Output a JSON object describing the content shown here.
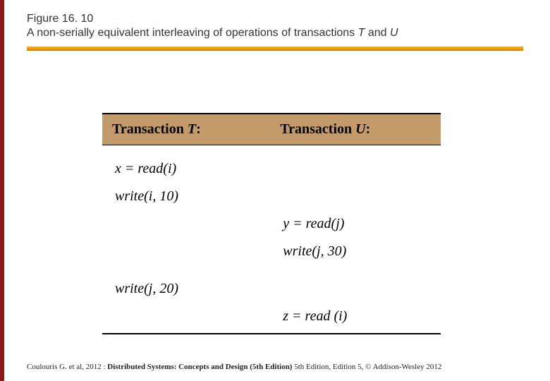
{
  "left_stripe_color": "#8b1a1a",
  "header": {
    "figure_number": "Figure 16. 10",
    "title_prefix": "A non-serially equivalent interleaving of operations of transactions ",
    "title_t": "T",
    "title_and": " and ",
    "title_u": "U"
  },
  "orange_bar": {
    "fill": "#f4a918",
    "shadow": "#e08a00"
  },
  "table": {
    "header_bg": "#c39b6b",
    "col_t_label_prefix": "Transaction ",
    "col_t_label_var": "T",
    "col_t_label_suffix": ":",
    "col_u_label_prefix": "Transaction ",
    "col_u_label_var": "U",
    "col_u_label_suffix": ":",
    "rows": [
      {
        "t": "x = read(i)",
        "u": ""
      },
      {
        "t": "write(i, 10)",
        "u": ""
      },
      {
        "t": "",
        "u": "y = read(j)"
      },
      {
        "t": "",
        "u": "write(j, 30)"
      },
      {
        "t": "write(j, 20)",
        "u": ""
      },
      {
        "t": "",
        "u": "z = read (i)"
      }
    ]
  },
  "footer": {
    "prefix": "Coulouris G. et al, 2012 : ",
    "bold": "Distributed Systems: Concepts and Design (5th Edition)",
    "suffix": " 5th Edition, Edition 5, © Addison-Wesley 2012"
  }
}
